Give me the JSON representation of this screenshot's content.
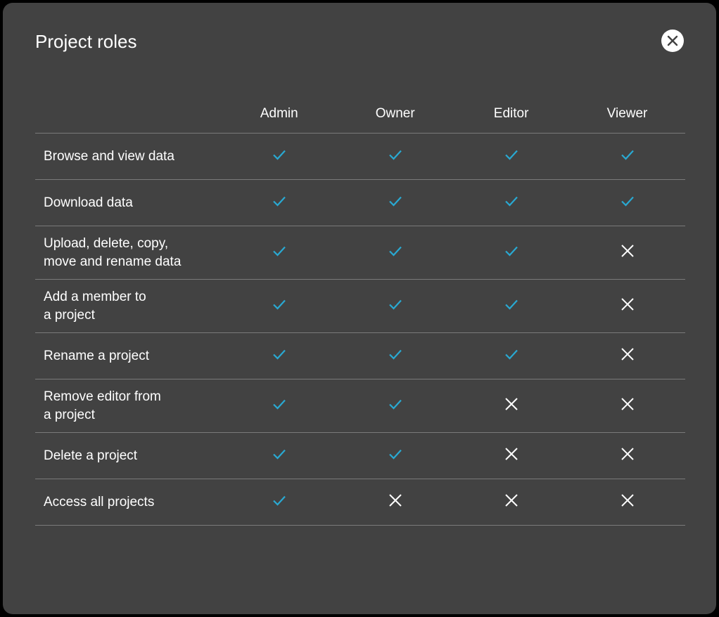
{
  "dialog": {
    "title": "Project roles",
    "close_icon": "close-icon"
  },
  "colors": {
    "check": "#29a9d2",
    "cross": "#ffffff",
    "background": "#424242"
  },
  "table": {
    "columns": [
      "Admin",
      "Owner",
      "Editor",
      "Viewer"
    ],
    "rows": [
      {
        "label": "Browse and view data",
        "lines": [
          "Browse and view data"
        ],
        "values": [
          true,
          true,
          true,
          true
        ]
      },
      {
        "label": "Download data",
        "lines": [
          "Download data"
        ],
        "values": [
          true,
          true,
          true,
          true
        ]
      },
      {
        "label": "Upload, delete, copy, move and rename data",
        "lines": [
          "Upload, delete, copy,",
          "move and rename data"
        ],
        "values": [
          true,
          true,
          true,
          false
        ]
      },
      {
        "label": "Add a member to a project",
        "lines": [
          "Add a member to",
          "a project"
        ],
        "values": [
          true,
          true,
          true,
          false
        ]
      },
      {
        "label": "Rename a project",
        "lines": [
          "Rename a project"
        ],
        "values": [
          true,
          true,
          true,
          false
        ]
      },
      {
        "label": "Remove editor from a project",
        "lines": [
          "Remove editor from",
          "a project"
        ],
        "values": [
          true,
          true,
          false,
          false
        ]
      },
      {
        "label": "Delete a project",
        "lines": [
          "Delete a project"
        ],
        "values": [
          true,
          true,
          false,
          false
        ]
      },
      {
        "label": "Access all projects",
        "lines": [
          "Access all projects"
        ],
        "values": [
          true,
          false,
          false,
          false
        ]
      }
    ]
  }
}
